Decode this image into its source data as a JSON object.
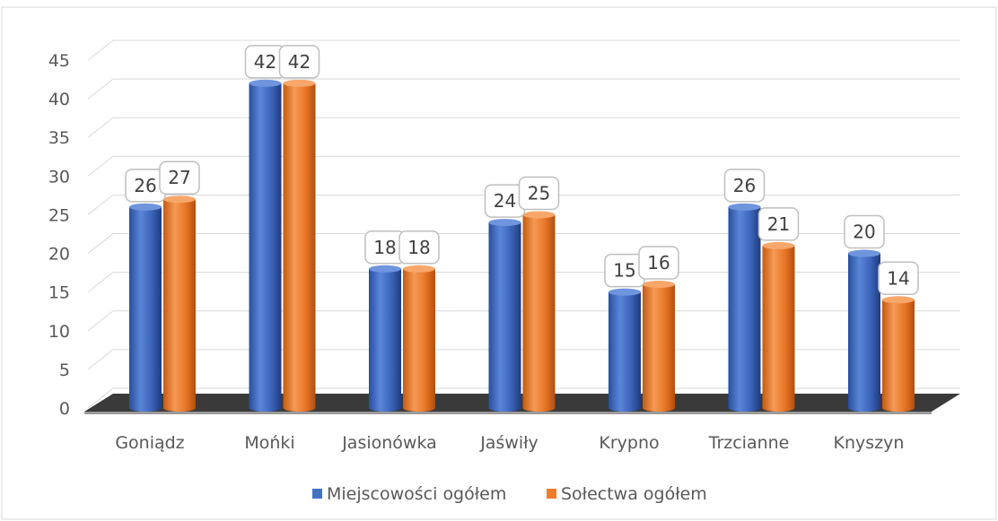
{
  "chart_data": {
    "type": "bar",
    "categories": [
      "Goniądz",
      "Mońki",
      "Jasionówka",
      "Jaświły",
      "Krypno",
      "Trzcianne",
      "Knyszyn"
    ],
    "series": [
      {
        "name": "Miejscowości ogółem",
        "values": [
          26,
          42,
          18,
          24,
          15,
          26,
          20
        ]
      },
      {
        "name": "Sołectwa ogółem",
        "values": [
          27,
          42,
          18,
          25,
          16,
          21,
          14
        ]
      }
    ],
    "title": "",
    "xlabel": "",
    "ylabel": "",
    "ylim": [
      0,
      45
    ],
    "yticks": [
      "0",
      "5",
      "10",
      "15",
      "20",
      "25",
      "30",
      "35",
      "40",
      "45"
    ],
    "grid": true,
    "legend": "bottom",
    "style": "3d-cylinder",
    "colors": {
      "series1": "#4472C4",
      "series2": "#ED7D31"
    }
  }
}
